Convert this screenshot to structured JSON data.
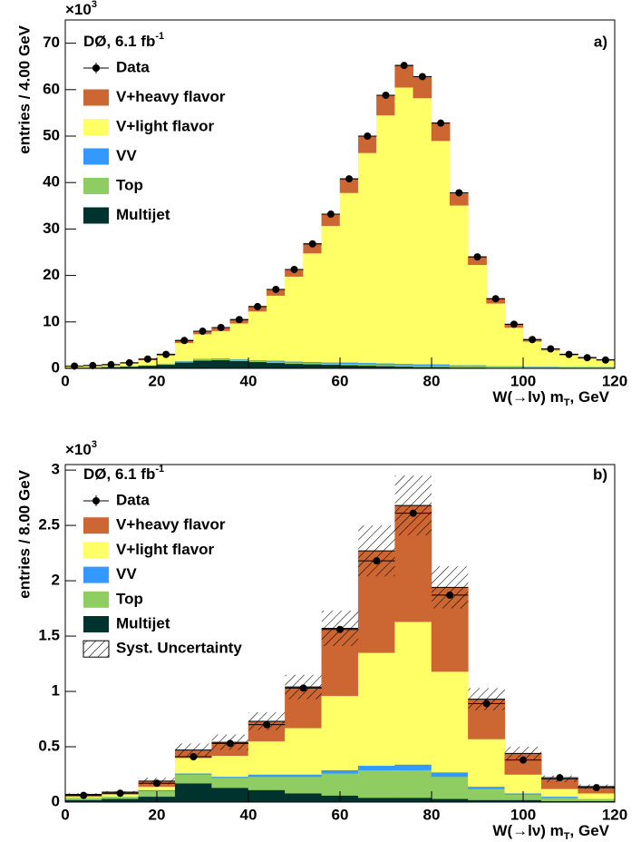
{
  "chart_data": [
    {
      "type": "histogram",
      "panel_label": "a)",
      "y_multiplier": {
        "text": "×10",
        "sup": "3"
      },
      "annotation": {
        "text": "DØ, 6.1 fb",
        "sup": "-1"
      },
      "xlabel": {
        "text": "W(→lν) m",
        "sub": "T",
        "end": ", GeV"
      },
      "ylabel": "entries / 4.00 GeV",
      "bins": [
        0,
        4,
        8,
        12,
        16,
        20,
        24,
        28,
        32,
        36,
        40,
        44,
        48,
        52,
        56,
        60,
        64,
        68,
        72,
        76,
        80,
        84,
        88,
        92,
        96,
        100,
        104,
        108,
        112,
        116,
        120
      ],
      "xlim": [
        0,
        120
      ],
      "xticks": [
        0,
        20,
        40,
        60,
        80,
        100,
        120
      ],
      "ylim": [
        0,
        75
      ],
      "yticks": [
        0,
        10,
        20,
        30,
        40,
        50,
        60,
        70
      ],
      "data": {
        "name": "Data",
        "color": "#000000",
        "values": [
          0.5,
          0.6,
          0.8,
          1.2,
          2.0,
          3.0,
          6.0,
          8.0,
          8.8,
          10.5,
          13.3,
          17.0,
          21.3,
          26.8,
          33.2,
          40.8,
          50.0,
          58.8,
          65.2,
          62.8,
          52.8,
          37.8,
          24.0,
          15.0,
          9.5,
          6.2,
          4.2,
          3.0,
          2.3,
          1.8
        ]
      },
      "series": [
        {
          "name": "Multijet",
          "color": "#00332e",
          "values": [
            0.2,
            0.2,
            0.3,
            0.4,
            0.6,
            0.8,
            1.3,
            1.7,
            1.8,
            1.6,
            1.4,
            1.2,
            1.0,
            0.9,
            0.8,
            0.7,
            0.6,
            0.5,
            0.4,
            0.3,
            0.3,
            0.2,
            0.2,
            0.1,
            0.1,
            0.1,
            0.1,
            0.1,
            0.1,
            0.1
          ]
        },
        {
          "name": "Top",
          "color": "#8fcd62",
          "values": [
            0.05,
            0.05,
            0.1,
            0.1,
            0.1,
            0.2,
            0.2,
            0.3,
            0.3,
            0.3,
            0.3,
            0.3,
            0.3,
            0.3,
            0.3,
            0.3,
            0.3,
            0.3,
            0.3,
            0.3,
            0.3,
            0.3,
            0.3,
            0.3,
            0.3,
            0.2,
            0.2,
            0.2,
            0.2,
            0.2
          ]
        },
        {
          "name": "VV",
          "color": "#3399ff",
          "values": [
            0,
            0,
            0,
            0,
            0,
            0.05,
            0.1,
            0.1,
            0.1,
            0.1,
            0.1,
            0.2,
            0.2,
            0.2,
            0.2,
            0.3,
            0.3,
            0.3,
            0.3,
            0.3,
            0.3,
            0.2,
            0.2,
            0.1,
            0.1,
            0.1,
            0.1,
            0.05,
            0.05,
            0.05
          ]
        },
        {
          "name": "V+light flavor",
          "color": "#ffff66",
          "values": [
            0.2,
            0.3,
            0.3,
            0.6,
            1.1,
            1.7,
            3.9,
            5.3,
            5.9,
            7.7,
            10.5,
            14.0,
            18.3,
            23.4,
            29.4,
            36.5,
            45.2,
            53.4,
            59.5,
            57.3,
            48.1,
            34.4,
            21.6,
            13.5,
            8.3,
            5.4,
            3.5,
            2.5,
            1.8,
            1.4
          ]
        },
        {
          "name": "V+heavy flavor",
          "color": "#cc6633",
          "values": [
            0.05,
            0.05,
            0.1,
            0.1,
            0.2,
            0.3,
            0.5,
            0.6,
            0.7,
            0.8,
            1.0,
            1.3,
            1.5,
            2.0,
            2.5,
            3.0,
            3.6,
            4.3,
            4.7,
            4.6,
            3.8,
            2.7,
            1.7,
            1.0,
            0.7,
            0.4,
            0.3,
            0.2,
            0.2,
            0.1
          ]
        }
      ]
    },
    {
      "type": "histogram",
      "panel_label": "b)",
      "y_multiplier": {
        "text": "×10",
        "sup": "3"
      },
      "annotation": {
        "text": "DØ, 6.1 fb",
        "sup": "-1"
      },
      "xlabel": {
        "text": "W(→lν) m",
        "sub": "T",
        "end": ", GeV"
      },
      "ylabel": "entries / 8.00 GeV",
      "bins": [
        0,
        8,
        16,
        24,
        32,
        40,
        48,
        56,
        64,
        72,
        80,
        88,
        96,
        104,
        112,
        120
      ],
      "xlim": [
        0,
        120
      ],
      "xticks": [
        0,
        20,
        40,
        60,
        80,
        100,
        120
      ],
      "ylim": [
        0,
        3.05
      ],
      "yticks": [
        0,
        0.5,
        1,
        1.5,
        2,
        2.5,
        3
      ],
      "data": {
        "name": "Data",
        "color": "#000000",
        "values": [
          0.06,
          0.08,
          0.17,
          0.41,
          0.53,
          0.7,
          1.03,
          1.56,
          2.18,
          2.61,
          1.87,
          0.89,
          0.38,
          0.22,
          0.13
        ]
      },
      "series": [
        {
          "name": "Multijet",
          "color": "#00332e",
          "values": [
            0.02,
            0.03,
            0.05,
            0.17,
            0.13,
            0.11,
            0.08,
            0.06,
            0.04,
            0.04,
            0.03,
            0.02,
            0.02,
            0.01,
            0.01
          ]
        },
        {
          "name": "Top",
          "color": "#8fcd62",
          "values": [
            0.02,
            0.02,
            0.05,
            0.08,
            0.09,
            0.12,
            0.15,
            0.2,
            0.25,
            0.25,
            0.2,
            0.1,
            0.05,
            0.03,
            0.02
          ]
        },
        {
          "name": "VV",
          "color": "#3399ff",
          "values": [
            0,
            0,
            0.01,
            0.01,
            0.01,
            0.02,
            0.02,
            0.03,
            0.04,
            0.05,
            0.04,
            0.02,
            0.01,
            0.01,
            0
          ]
        },
        {
          "name": "V+light flavor",
          "color": "#ffff66",
          "values": [
            0.01,
            0.02,
            0.03,
            0.14,
            0.19,
            0.3,
            0.42,
            0.67,
            1.02,
            1.29,
            0.91,
            0.43,
            0.17,
            0.07,
            0.05
          ]
        },
        {
          "name": "V+heavy flavor",
          "color": "#cc6633",
          "values": [
            0.02,
            0.02,
            0.05,
            0.07,
            0.12,
            0.18,
            0.37,
            0.61,
            0.92,
            1.05,
            0.76,
            0.36,
            0.19,
            0.09,
            0.06
          ]
        }
      ],
      "uncertainty": {
        "name": "Syst. Uncertainty",
        "values": [
          0.01,
          0.01,
          0.03,
          0.06,
          0.07,
          0.08,
          0.11,
          0.16,
          0.23,
          0.27,
          0.19,
          0.1,
          0.06,
          0.03,
          0.02
        ]
      }
    }
  ]
}
